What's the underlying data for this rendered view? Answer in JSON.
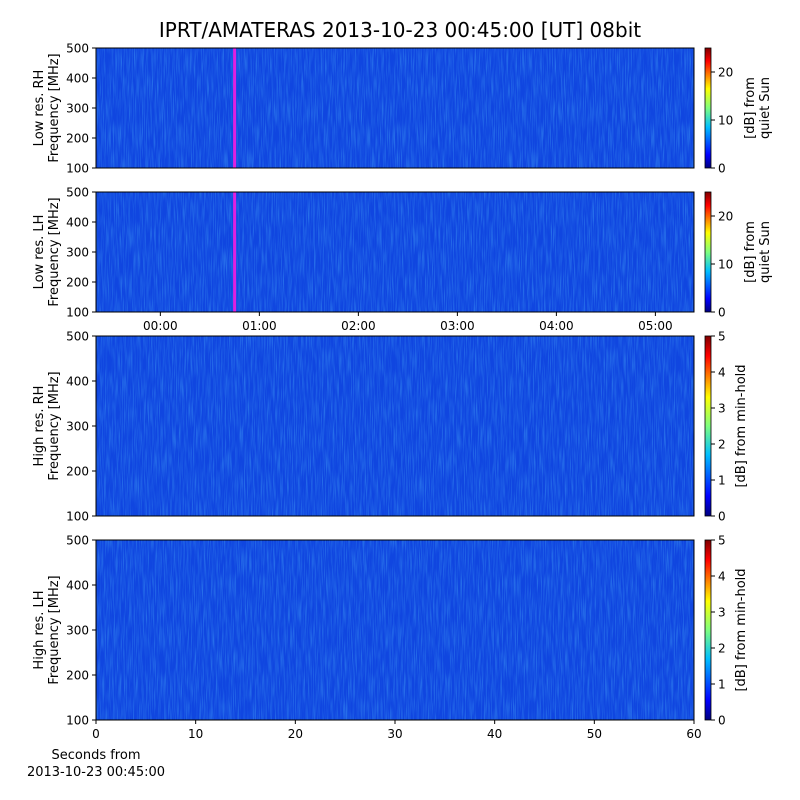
{
  "chart_data": [
    {
      "type": "heatmap",
      "title": "IPRT/AMATERAS 2013-10-23 00:45:00 [UT]   08bit",
      "ylabel": [
        "Low res. RH",
        "Frequency [MHz]"
      ],
      "ylim": [
        100,
        500
      ],
      "yticks": [
        100,
        200,
        300,
        400,
        500
      ],
      "xlim": [
        -0.65,
        5.39
      ],
      "markers": [
        0.75
      ],
      "marker_color": "#e020e0",
      "colorbar_label": [
        "[dB] from",
        "quiet Sun"
      ],
      "clim": [
        0,
        25
      ],
      "cticks": [
        0,
        10,
        20
      ]
    },
    {
      "type": "heatmap",
      "ylabel": [
        "Low res. LH",
        "Frequency [MHz]"
      ],
      "ylim": [
        100,
        500
      ],
      "yticks": [
        100,
        200,
        300,
        400,
        500
      ],
      "xlim": [
        -0.65,
        5.39
      ],
      "xticks": [
        {
          "value": 0,
          "label": "00:00"
        },
        {
          "value": 1,
          "label": "01:00"
        },
        {
          "value": 2,
          "label": "02:00"
        },
        {
          "value": 3,
          "label": "03:00"
        },
        {
          "value": 4,
          "label": "04:00"
        },
        {
          "value": 5,
          "label": "05:00"
        }
      ],
      "markers": [
        0.75
      ],
      "marker_color": "#e020e0",
      "colorbar_label": [
        "[dB] from",
        "quiet Sun"
      ],
      "clim": [
        0,
        25
      ],
      "cticks": [
        0,
        10,
        20
      ]
    },
    {
      "type": "heatmap",
      "ylabel": [
        "High res. RH",
        "Frequency [MHz]"
      ],
      "ylim": [
        100,
        500
      ],
      "yticks": [
        100,
        200,
        300,
        400,
        500
      ],
      "xlim": [
        0,
        60
      ],
      "colorbar_label": [
        "[dB] from min-hold"
      ],
      "clim": [
        0,
        5
      ],
      "cticks": [
        0,
        1,
        2,
        3,
        4,
        5
      ]
    },
    {
      "type": "heatmap",
      "ylabel": [
        "High res. LH",
        "Frequency [MHz]"
      ],
      "ylim": [
        100,
        500
      ],
      "yticks": [
        100,
        200,
        300,
        400,
        500
      ],
      "xlim": [
        0,
        60
      ],
      "xticks": [
        0,
        10,
        20,
        30,
        40,
        50,
        60
      ],
      "xlabel": [
        "Seconds from",
        "2013-10-23 00:45:00"
      ],
      "colorbar_label": [
        "[dB] from min-hold"
      ],
      "clim": [
        0,
        5
      ],
      "cticks": [
        0,
        1,
        2,
        3,
        4,
        5
      ]
    }
  ]
}
